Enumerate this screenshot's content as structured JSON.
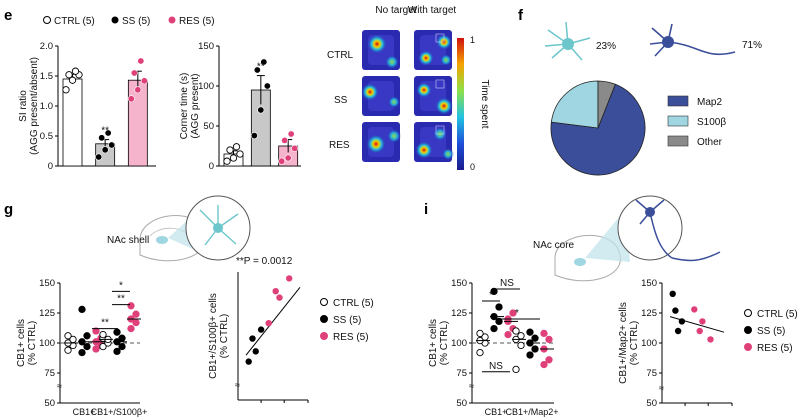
{
  "colors": {
    "ctrl": "#ffffff",
    "ss": "#000000",
    "res": "#e0407a",
    "res_bar": "#f6b4cc",
    "ss_bar": "#c8c8c8",
    "map2": "#3b4e9a",
    "s100b": "#9fd6e2",
    "other": "#8a8a8a",
    "neuron": "#3b4e9a",
    "astro": "#6cc6cc"
  },
  "legend_top": {
    "ctrl": "CTRL (5)",
    "ss": "SS (5)",
    "res": "RES (5)"
  },
  "panels": {
    "e": "e",
    "f": "f",
    "g": "g",
    "i": "i"
  },
  "heatmap": {
    "col1": "No target",
    "col2": "With target",
    "rows": [
      "CTRL",
      "SS",
      "RES"
    ],
    "colorbar_label": "Time spent",
    "max": "1",
    "min": "0"
  },
  "f_panel": {
    "astro_pct": "23%",
    "neuron_pct": "71%"
  },
  "g_panel": {
    "region": "NAc shell"
  },
  "i_panel": {
    "region": "NAc core"
  },
  "chart_data": [
    {
      "id": "e-si-ratio",
      "type": "bar",
      "ylabel": "SI ratio",
      "ylabel2": "(AGG present/absent)",
      "ylim": [
        0,
        2.0
      ],
      "yticks": [
        "0",
        "0.5",
        "1.0",
        "1.5",
        "2.0"
      ],
      "ytick_values": [
        0,
        0.5,
        1.0,
        1.5,
        2.0
      ],
      "categories": [
        "CTRL",
        "SS",
        "RES"
      ],
      "means": [
        1.45,
        0.37,
        1.43
      ],
      "sem": [
        0.08,
        0.07,
        0.15
      ],
      "points": [
        [
          1.27,
          1.43,
          1.52,
          1.52,
          1.58
        ],
        [
          0.15,
          0.27,
          0.35,
          0.47,
          0.55
        ],
        [
          1.12,
          1.27,
          1.42,
          1.55,
          1.75
        ]
      ],
      "sig": [
        "",
        "**",
        ""
      ]
    },
    {
      "id": "e-corner-time",
      "type": "bar",
      "ylabel": "Corner time (s)",
      "ylabel2": "(AGG present)",
      "ylim": [
        0,
        150
      ],
      "yticks": [
        "0",
        "50",
        "100",
        "150"
      ],
      "ytick_values": [
        0,
        50,
        100,
        150
      ],
      "categories": [
        "CTRL",
        "SS",
        "RES"
      ],
      "means": [
        15,
        95,
        25
      ],
      "sem": [
        4,
        18,
        8
      ],
      "points": [
        [
          6,
          10,
          15,
          20,
          24
        ],
        [
          38,
          70,
          100,
          120,
          130
        ],
        [
          6,
          10,
          22,
          32,
          40
        ]
      ],
      "sig": [
        "",
        "**",
        ""
      ]
    },
    {
      "id": "f-pie",
      "type": "pie",
      "labels": [
        "Map2",
        "S100β",
        "Other"
      ],
      "values": [
        71,
        23,
        6
      ]
    },
    {
      "id": "g-cb1-dots",
      "type": "scatter",
      "ylabel": "CB1+ cells",
      "ylabel2": "(% CTRL)",
      "ylim": [
        50,
        150
      ],
      "yticks": [
        "50",
        "75",
        "100",
        "125",
        "150"
      ],
      "ytick_values": [
        50,
        75,
        100,
        125,
        150
      ],
      "categories": [
        "CB1+",
        "CB1+/S100β+"
      ],
      "ctrl_line": 100,
      "groups": [
        {
          "ctrl": [
            94,
            98,
            100,
            103,
            106
          ],
          "ss": [
            92,
            97,
            101,
            106,
            128
          ],
          "res": [
            95,
            98,
            101,
            104,
            110
          ]
        },
        {
          "ctrl": [
            97,
            100,
            104,
            103,
            107
          ],
          "ss": [
            93,
            97,
            101,
            104,
            109
          ],
          "res": [
            112,
            117,
            120,
            124,
            131
          ]
        }
      ],
      "annotations": [
        "**",
        "**",
        "*"
      ]
    },
    {
      "id": "g-correlation",
      "type": "scatter",
      "title": "**P = 0.0012",
      "ylabel": "CB1+/S100β+ cells",
      "ylabel2": "(% CTRL)",
      "points": [
        [
          0.05,
          0.3
        ],
        [
          0.12,
          0.48
        ],
        [
          0.18,
          0.38
        ],
        [
          0.28,
          0.55
        ],
        [
          0.42,
          0.6
        ],
        [
          0.55,
          0.85
        ],
        [
          0.62,
          0.8
        ],
        [
          0.8,
          0.95
        ]
      ],
      "fit": [
        [
          0.0,
          0.35
        ],
        [
          1.0,
          0.88
        ]
      ],
      "legend": [
        "CTRL (5)",
        "SS (5)",
        "RES (5)"
      ]
    },
    {
      "id": "i-cb1-dots",
      "type": "scatter",
      "ylabel": "CB1+ cells",
      "ylabel2": "(% CTRL)",
      "ylim": [
        50,
        150
      ],
      "yticks": [
        "50",
        "75",
        "100",
        "125",
        "150"
      ],
      "ytick_values": [
        50,
        75,
        100,
        125,
        150
      ],
      "categories": [
        "CB1+",
        "CB1+/Map2+"
      ],
      "ctrl_line": 100,
      "groups": [
        {
          "ctrl": [
            92,
            100,
            102,
            105,
            108
          ],
          "ss": [
            112,
            118,
            122,
            130,
            143
          ],
          "res": [
            107,
            112,
            118,
            125,
            120
          ]
        },
        {
          "ctrl": [
            78,
            98,
            103,
            106,
            110
          ],
          "ss": [
            90,
            95,
            100,
            104,
            109
          ],
          "res": [
            82,
            86,
            95,
            103,
            108
          ]
        }
      ],
      "annotations": [
        "*",
        "NS",
        "*",
        "NS"
      ]
    },
    {
      "id": "i-correlation",
      "type": "scatter",
      "ylabel": "CB1+/Map2+ cells",
      "ylabel2": "(% CTRL)",
      "ylim": [
        50,
        150
      ],
      "yticks": [
        "50",
        "75",
        "100",
        "125",
        "150"
      ],
      "ytick_values": [
        50,
        75,
        100,
        125,
        150
      ],
      "points": [
        [
          0.05,
          141
        ],
        [
          0.1,
          127
        ],
        [
          0.22,
          118
        ],
        [
          0.15,
          110
        ],
        [
          0.45,
          128
        ],
        [
          0.55,
          110
        ],
        [
          0.75,
          103
        ],
        [
          0.6,
          118
        ]
      ],
      "fit": [
        [
          0.0,
          122
        ],
        [
          1.0,
          109
        ]
      ],
      "legend": [
        "CTRL (5)",
        "SS (5)",
        "RES (5)"
      ]
    }
  ]
}
